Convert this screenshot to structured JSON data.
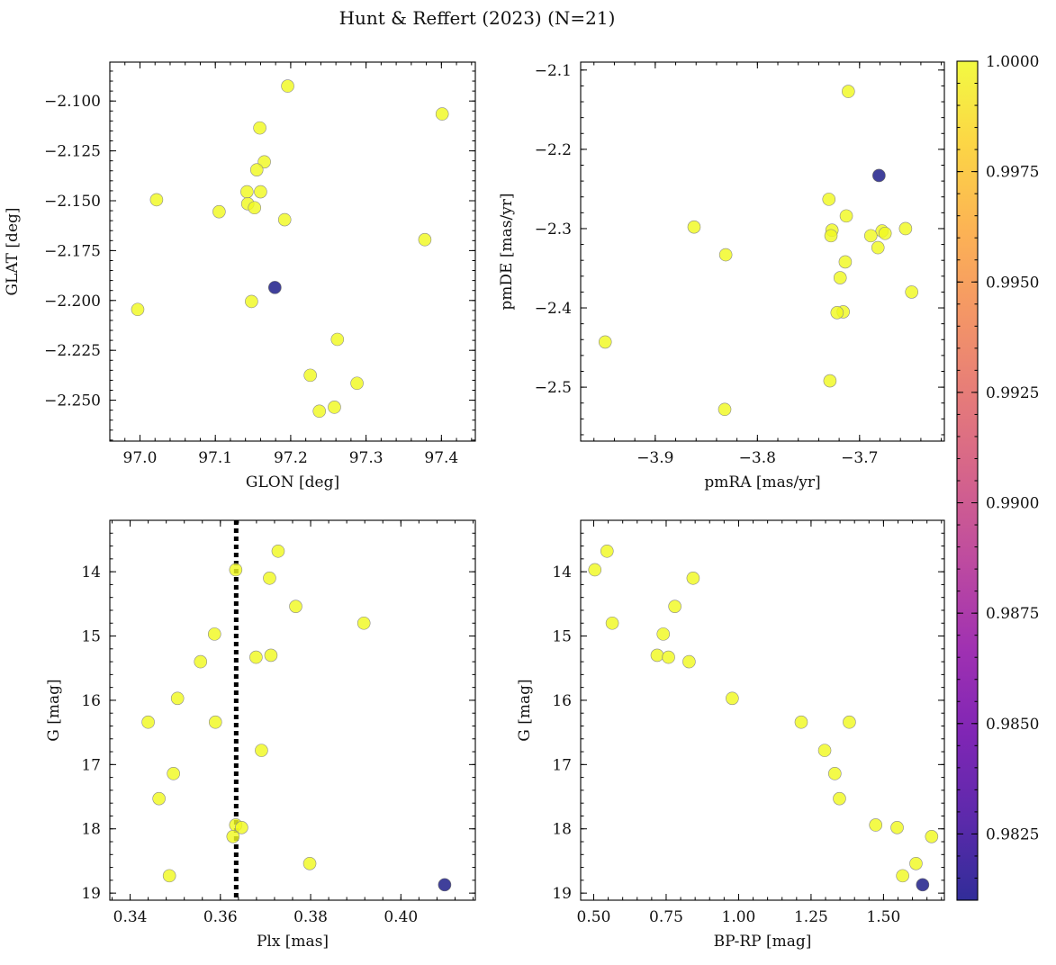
{
  "chart_data": {
    "title": "Hunt & Reffert (2023) (N=21)",
    "colorbar": {
      "cmap": "plasma",
      "range": [
        0.981,
        1.0
      ],
      "ticks": [
        "0.9825",
        "0.9850",
        "0.9875",
        "0.9900",
        "0.9925",
        "0.9950",
        "0.9975",
        "1.0000"
      ],
      "tick_values": [
        0.9825,
        0.985,
        0.9875,
        0.99,
        0.9925,
        0.995,
        0.9975,
        1.0
      ]
    },
    "panels": [
      {
        "type": "scatter",
        "xlabel": "GLON [deg]",
        "ylabel": "GLAT [deg]",
        "xlim": [
          96.96,
          97.445
        ],
        "ylim": [
          -2.2705,
          -2.0805
        ],
        "xticks": [
          97.0,
          97.1,
          97.2,
          97.3,
          97.4
        ],
        "xtick_labels": [
          "97.0",
          "97.1",
          "97.2",
          "97.3",
          "97.4"
        ],
        "yticks": [
          -2.1,
          -2.125,
          -2.15,
          -2.175,
          -2.2,
          -2.225,
          -2.25
        ],
        "ytick_labels": [
          "−2.100",
          "−2.125",
          "−2.150",
          "−2.175",
          "−2.200",
          "−2.225",
          "−2.250"
        ],
        "invert_y": false,
        "points": [
          {
            "x": 97.196,
            "y": -2.0925,
            "c": 1.0
          },
          {
            "x": 97.401,
            "y": -2.1065,
            "c": 1.0
          },
          {
            "x": 97.159,
            "y": -2.1135,
            "c": 1.0
          },
          {
            "x": 97.165,
            "y": -2.1305,
            "c": 1.0
          },
          {
            "x": 97.155,
            "y": -2.1345,
            "c": 1.0
          },
          {
            "x": 97.142,
            "y": -2.1455,
            "c": 1.0
          },
          {
            "x": 97.16,
            "y": -2.1455,
            "c": 1.0
          },
          {
            "x": 97.022,
            "y": -2.1495,
            "c": 1.0
          },
          {
            "x": 97.143,
            "y": -2.1515,
            "c": 1.0
          },
          {
            "x": 97.152,
            "y": -2.1535,
            "c": 1.0
          },
          {
            "x": 97.105,
            "y": -2.1555,
            "c": 1.0
          },
          {
            "x": 97.192,
            "y": -2.1595,
            "c": 1.0
          },
          {
            "x": 97.378,
            "y": -2.1695,
            "c": 1.0
          },
          {
            "x": 97.179,
            "y": -2.1935,
            "c": 0.981
          },
          {
            "x": 97.148,
            "y": -2.2005,
            "c": 1.0
          },
          {
            "x": 96.997,
            "y": -2.2045,
            "c": 1.0
          },
          {
            "x": 97.262,
            "y": -2.2195,
            "c": 1.0
          },
          {
            "x": 97.226,
            "y": -2.2375,
            "c": 1.0
          },
          {
            "x": 97.288,
            "y": -2.2415,
            "c": 1.0
          },
          {
            "x": 97.258,
            "y": -2.2535,
            "c": 1.0
          },
          {
            "x": 97.238,
            "y": -2.2555,
            "c": 1.0
          }
        ]
      },
      {
        "type": "scatter",
        "xlabel": "pmRA [mas/yr]",
        "ylabel": "pmDE [mas/yr]",
        "xlim": [
          -3.973,
          -3.617
        ],
        "ylim": [
          -2.568,
          -2.09
        ],
        "xticks": [
          -3.9,
          -3.8,
          -3.7
        ],
        "xtick_labels": [
          "−3.9",
          "−3.8",
          "−3.7"
        ],
        "yticks": [
          -2.1,
          -2.2,
          -2.3,
          -2.4,
          -2.5
        ],
        "ytick_labels": [
          "−2.1",
          "−2.2",
          "−2.3",
          "−2.4",
          "−2.5"
        ],
        "invert_y": false,
        "points": [
          {
            "x": -3.711,
            "y": -2.127,
            "c": 1.0
          },
          {
            "x": -3.681,
            "y": -2.233,
            "c": 0.981
          },
          {
            "x": -3.73,
            "y": -2.263,
            "c": 1.0
          },
          {
            "x": -3.713,
            "y": -2.284,
            "c": 1.0
          },
          {
            "x": -3.862,
            "y": -2.298,
            "c": 1.0
          },
          {
            "x": -3.655,
            "y": -2.3,
            "c": 1.0
          },
          {
            "x": -3.727,
            "y": -2.302,
            "c": 1.0
          },
          {
            "x": -3.678,
            "y": -2.303,
            "c": 1.0
          },
          {
            "x": -3.675,
            "y": -2.306,
            "c": 1.0
          },
          {
            "x": -3.689,
            "y": -2.309,
            "c": 1.0
          },
          {
            "x": -3.728,
            "y": -2.309,
            "c": 1.0
          },
          {
            "x": -3.682,
            "y": -2.324,
            "c": 1.0
          },
          {
            "x": -3.831,
            "y": -2.333,
            "c": 1.0
          },
          {
            "x": -3.714,
            "y": -2.342,
            "c": 1.0
          },
          {
            "x": -3.719,
            "y": -2.362,
            "c": 1.0
          },
          {
            "x": -3.649,
            "y": -2.38,
            "c": 1.0
          },
          {
            "x": -3.716,
            "y": -2.405,
            "c": 1.0
          },
          {
            "x": -3.722,
            "y": -2.406,
            "c": 1.0
          },
          {
            "x": -3.949,
            "y": -2.443,
            "c": 1.0
          },
          {
            "x": -3.729,
            "y": -2.492,
            "c": 1.0
          },
          {
            "x": -3.832,
            "y": -2.528,
            "c": 1.0
          }
        ]
      },
      {
        "type": "scatter",
        "xlabel": "Plx [mas]",
        "ylabel": "G [mag]",
        "xlim": [
          0.3355,
          0.4165
        ],
        "ylim": [
          13.2,
          19.11
        ],
        "xticks": [
          0.34,
          0.36,
          0.38,
          0.4
        ],
        "xtick_labels": [
          "0.34",
          "0.36",
          "0.38",
          "0.40"
        ],
        "yticks": [
          14,
          15,
          16,
          17,
          18,
          19
        ],
        "ytick_labels": [
          "14",
          "15",
          "16",
          "17",
          "18",
          "19"
        ],
        "invert_y": true,
        "vline": {
          "x": 0.3635,
          "style": "dotted"
        },
        "points": [
          {
            "x": 0.3728,
            "y": 13.68,
            "c": 1.0
          },
          {
            "x": 0.3634,
            "y": 13.97,
            "c": 1.0
          },
          {
            "x": 0.3709,
            "y": 14.1,
            "c": 1.0
          },
          {
            "x": 0.3767,
            "y": 14.54,
            "c": 1.0
          },
          {
            "x": 0.3918,
            "y": 14.8,
            "c": 1.0
          },
          {
            "x": 0.3587,
            "y": 14.97,
            "c": 1.0
          },
          {
            "x": 0.3679,
            "y": 15.33,
            "c": 1.0
          },
          {
            "x": 0.3712,
            "y": 15.3,
            "c": 1.0
          },
          {
            "x": 0.3556,
            "y": 15.4,
            "c": 1.0
          },
          {
            "x": 0.3505,
            "y": 15.97,
            "c": 1.0
          },
          {
            "x": 0.344,
            "y": 16.34,
            "c": 1.0
          },
          {
            "x": 0.3589,
            "y": 16.34,
            "c": 1.0
          },
          {
            "x": 0.3691,
            "y": 16.78,
            "c": 1.0
          },
          {
            "x": 0.3496,
            "y": 17.14,
            "c": 1.0
          },
          {
            "x": 0.3464,
            "y": 17.53,
            "c": 1.0
          },
          {
            "x": 0.3634,
            "y": 17.94,
            "c": 1.0
          },
          {
            "x": 0.3647,
            "y": 17.98,
            "c": 1.0
          },
          {
            "x": 0.3628,
            "y": 18.12,
            "c": 1.0
          },
          {
            "x": 0.3798,
            "y": 18.54,
            "c": 1.0
          },
          {
            "x": 0.3487,
            "y": 18.73,
            "c": 1.0
          },
          {
            "x": 0.4097,
            "y": 18.87,
            "c": 0.981
          }
        ]
      },
      {
        "type": "scatter",
        "xlabel": "BP-RP [mag]",
        "ylabel": "G [mag]",
        "xlim": [
          0.455,
          1.71
        ],
        "ylim": [
          13.2,
          19.11
        ],
        "xticks": [
          0.5,
          0.75,
          1.0,
          1.25,
          1.5
        ],
        "xtick_labels": [
          "0.50",
          "0.75",
          "1.00",
          "1.25",
          "1.50"
        ],
        "yticks": [
          14,
          15,
          16,
          17,
          18,
          19
        ],
        "ytick_labels": [
          "14",
          "15",
          "16",
          "17",
          "18",
          "19"
        ],
        "invert_y": true,
        "points": [
          {
            "x": 0.546,
            "y": 13.68,
            "c": 1.0
          },
          {
            "x": 0.504,
            "y": 13.97,
            "c": 1.0
          },
          {
            "x": 0.843,
            "y": 14.1,
            "c": 1.0
          },
          {
            "x": 0.78,
            "y": 14.54,
            "c": 1.0
          },
          {
            "x": 0.564,
            "y": 14.8,
            "c": 1.0
          },
          {
            "x": 0.74,
            "y": 14.97,
            "c": 1.0
          },
          {
            "x": 0.719,
            "y": 15.3,
            "c": 1.0
          },
          {
            "x": 0.758,
            "y": 15.33,
            "c": 1.0
          },
          {
            "x": 0.829,
            "y": 15.4,
            "c": 1.0
          },
          {
            "x": 0.978,
            "y": 15.97,
            "c": 1.0
          },
          {
            "x": 1.216,
            "y": 16.34,
            "c": 1.0
          },
          {
            "x": 1.382,
            "y": 16.34,
            "c": 1.0
          },
          {
            "x": 1.297,
            "y": 16.78,
            "c": 1.0
          },
          {
            "x": 1.332,
            "y": 17.14,
            "c": 1.0
          },
          {
            "x": 1.348,
            "y": 17.53,
            "c": 1.0
          },
          {
            "x": 1.473,
            "y": 17.94,
            "c": 1.0
          },
          {
            "x": 1.547,
            "y": 17.98,
            "c": 1.0
          },
          {
            "x": 1.666,
            "y": 18.12,
            "c": 1.0
          },
          {
            "x": 1.612,
            "y": 18.54,
            "c": 1.0
          },
          {
            "x": 1.566,
            "y": 18.73,
            "c": 1.0
          },
          {
            "x": 1.635,
            "y": 18.87,
            "c": 0.981
          }
        ]
      }
    ]
  }
}
